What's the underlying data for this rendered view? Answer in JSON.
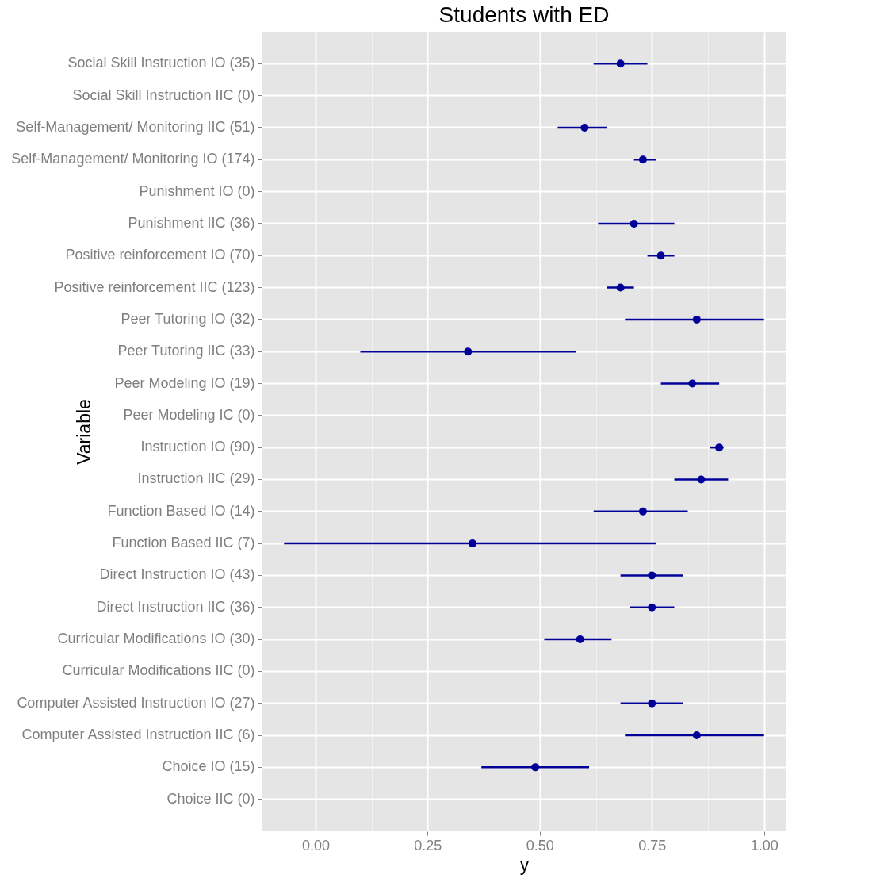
{
  "chart_data": {
    "type": "scatter",
    "orientation": "horizontal",
    "title": "Students with ED",
    "xlabel": "y",
    "ylabel": "Variable",
    "categories": [
      "Social Skill Instruction IO (35)",
      "Social Skill Instruction IIC (0)",
      "Self-Management/ Monitoring IIC (51)",
      "Self-Management/ Monitoring  IO (174)",
      "Punishment IO (0)",
      "Punishment IIC (36)",
      "Positive reinforcement IO (70)",
      "Positive reinforcement IIC (123)",
      "Peer Tutoring IO (32)",
      "Peer Tutoring IIC (33)",
      "Peer Modeling IO (19)",
      "Peer Modeling IC (0)",
      "Instruction IO (90)",
      "Instruction IIC (29)",
      "Function Based IO (14)",
      "Function Based IIC (7)",
      "Direct Instruction IO (43)",
      "Direct Instruction IIC (36)",
      "Curricular Modifications IO (30)",
      "Curricular Modifications IIC (0)",
      "Computer Assisted Instruction IO (27)",
      "Computer Assisted Instruction IIC (6)",
      "Choice IO (15)",
      "Choice IIC (0)"
    ],
    "series": [
      {
        "color": "#000099",
        "values": [
          0.68,
          null,
          0.6,
          0.73,
          null,
          0.71,
          0.77,
          0.68,
          0.85,
          0.34,
          0.84,
          null,
          0.9,
          0.86,
          0.73,
          0.35,
          0.75,
          0.75,
          0.59,
          null,
          0.75,
          0.85,
          0.49,
          null
        ],
        "errors": [
          [
            0.62,
            0.74
          ],
          null,
          [
            0.54,
            0.65
          ],
          [
            0.71,
            0.76
          ],
          null,
          [
            0.63,
            0.8
          ],
          [
            0.74,
            0.8
          ],
          [
            0.65,
            0.71
          ],
          [
            0.69,
            1.0
          ],
          [
            0.1,
            0.58
          ],
          [
            0.77,
            0.9
          ],
          null,
          [
            0.88,
            0.91
          ],
          [
            0.8,
            0.92
          ],
          [
            0.62,
            0.83
          ],
          [
            -0.07,
            0.76
          ],
          [
            0.68,
            0.82
          ],
          [
            0.7,
            0.8
          ],
          [
            0.51,
            0.66
          ],
          null,
          [
            0.68,
            0.82
          ],
          [
            0.69,
            1.0
          ],
          [
            0.37,
            0.61
          ],
          null
        ]
      }
    ],
    "xlim": [
      -0.12,
      1.05
    ],
    "xticks": [
      {
        "value": 0,
        "label": "0.00"
      },
      {
        "value": 0.25,
        "label": "0.25"
      },
      {
        "value": 0.5,
        "label": "0.50"
      },
      {
        "value": 0.75,
        "label": "0.75"
      },
      {
        "value": 1,
        "label": "1.00"
      }
    ],
    "grid": true,
    "marker": "circle"
  }
}
